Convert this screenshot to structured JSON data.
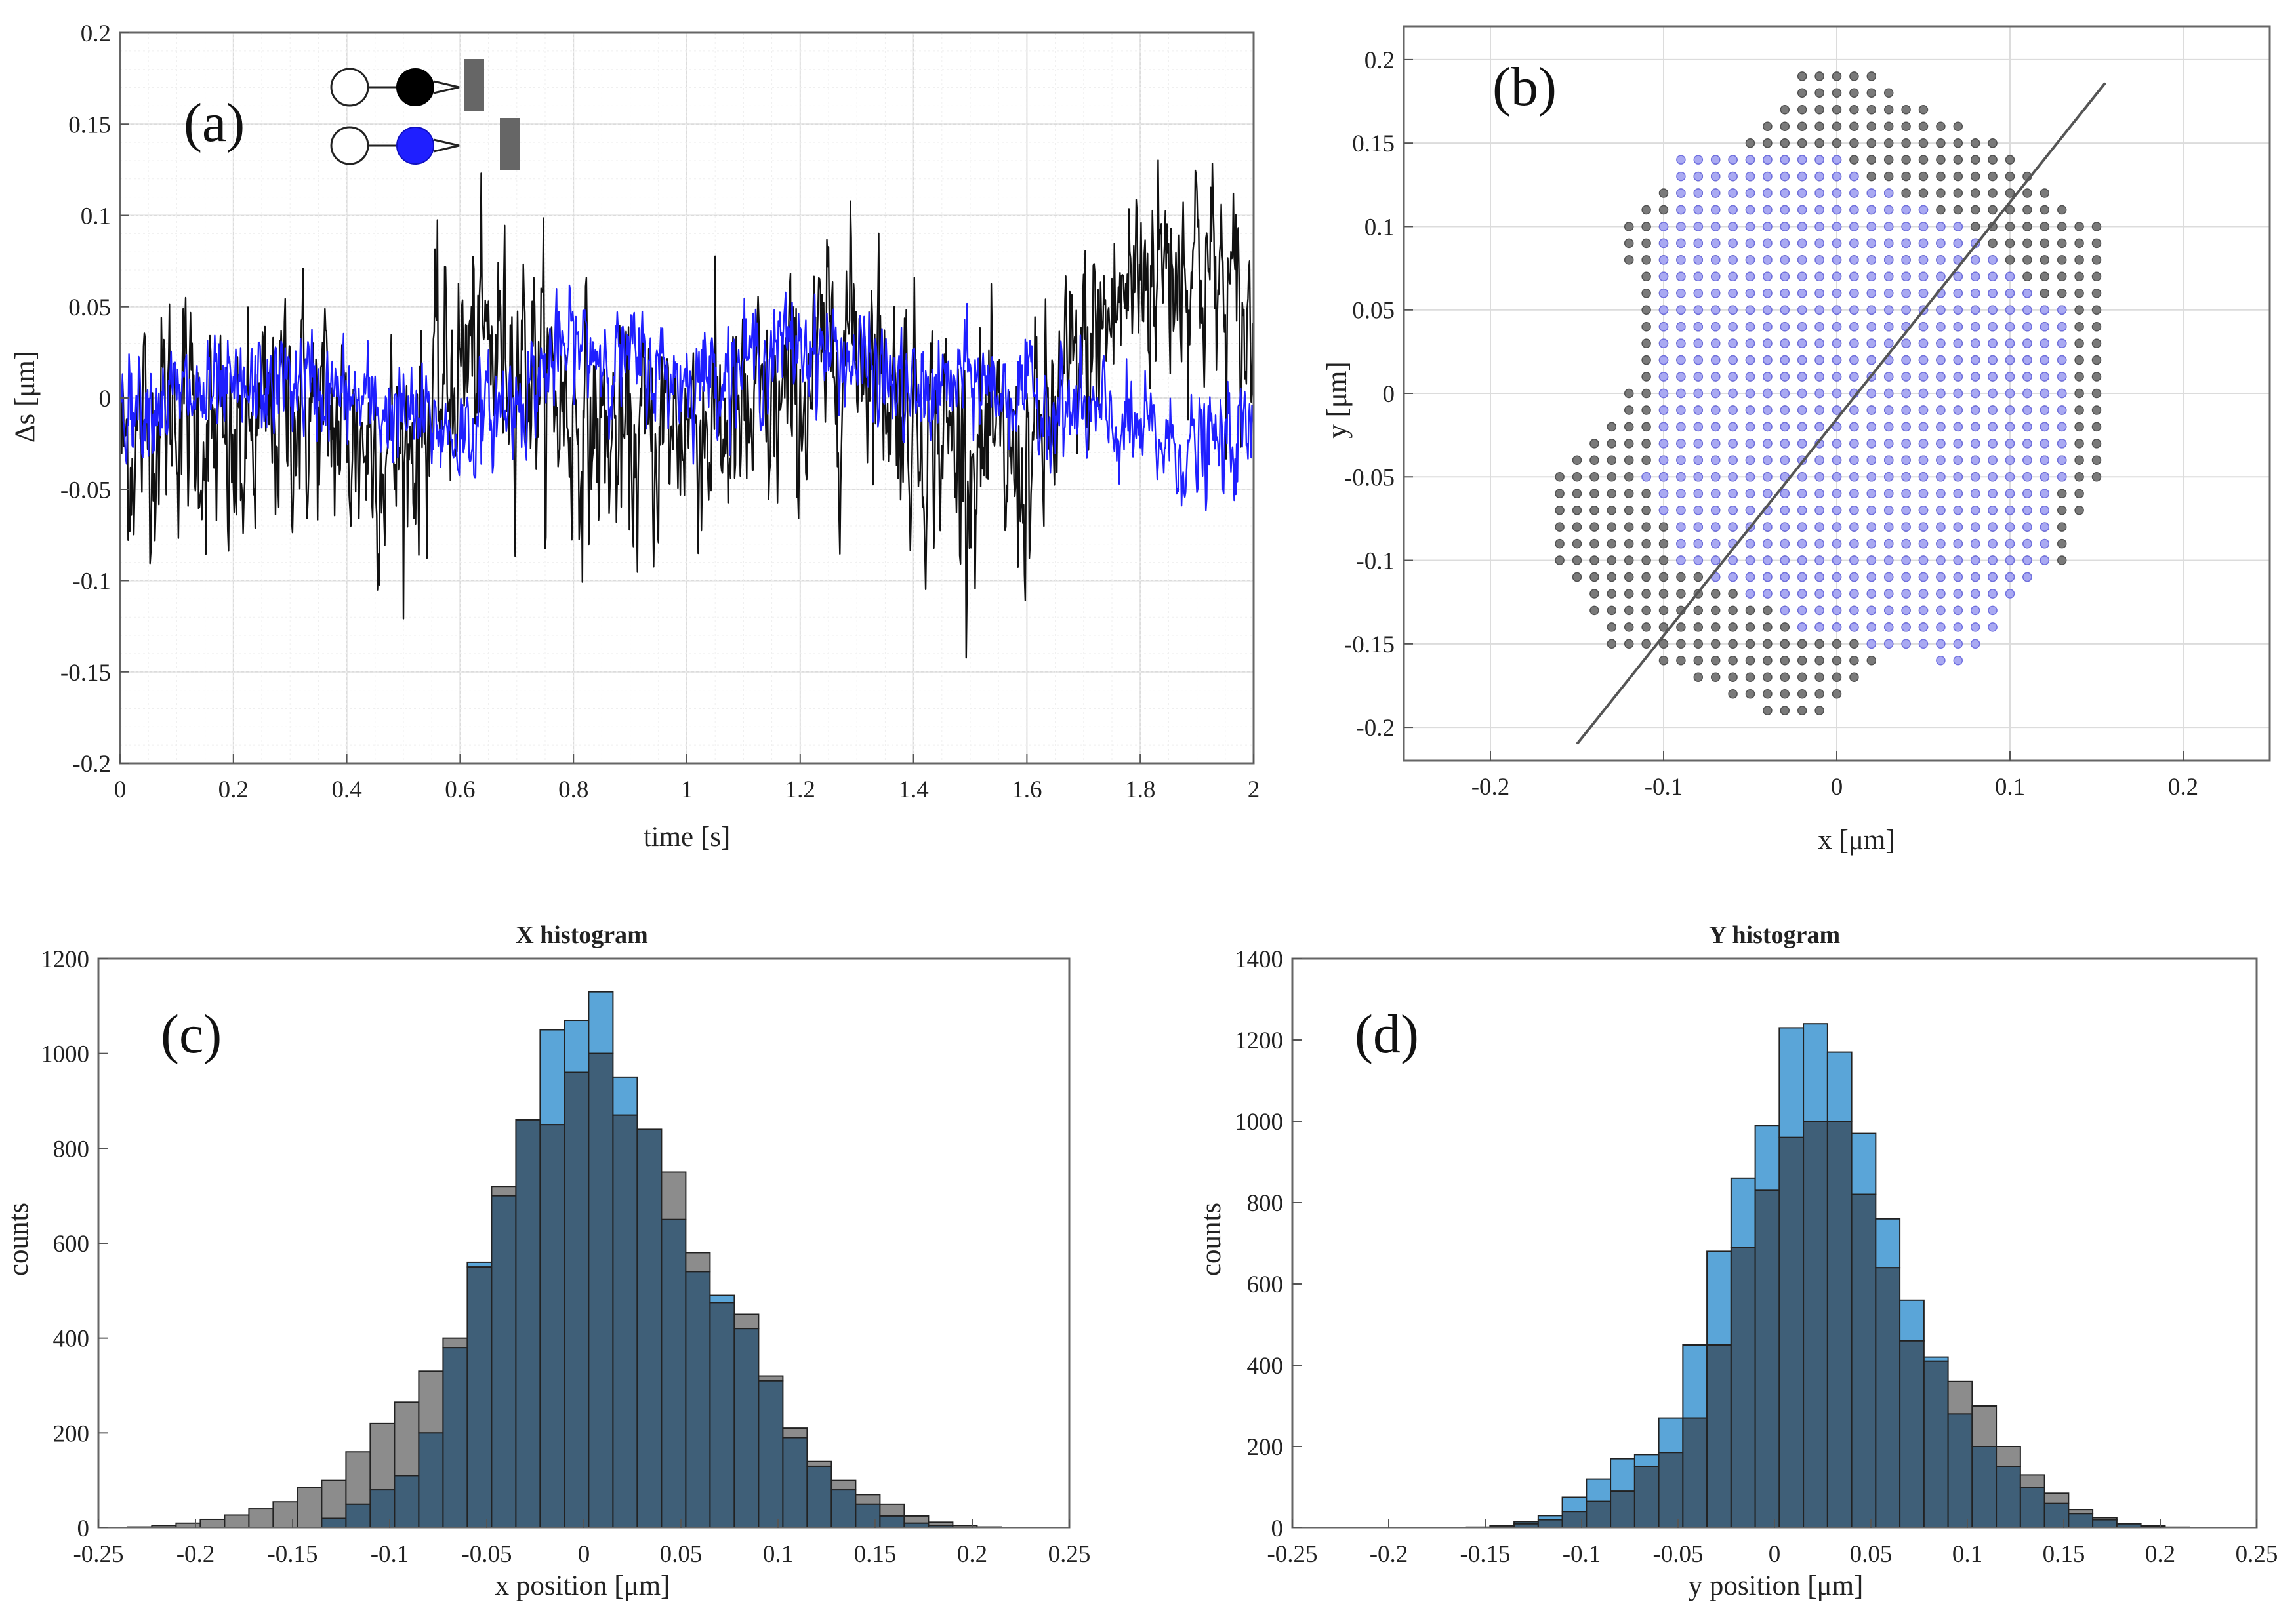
{
  "colors": {
    "black_trace": "#111111",
    "blue_trace": "#1f1fff",
    "gray_points": "#6e6e6e",
    "blue_points": "#7f7fe8",
    "hist_gray": "#8c8c8c",
    "hist_blue": "#5aa5d8",
    "hist_overlap": "#3f5f78",
    "fit_line": "#555555"
  },
  "chart_data": [
    {
      "id": "a",
      "type": "line",
      "panel_label": "(a)",
      "xlabel": "time [s]",
      "ylabel": "Δs [μm]",
      "xlim": [
        0,
        2
      ],
      "ylim": [
        -0.2,
        0.2
      ],
      "xticks": [
        0,
        0.2,
        0.4,
        0.6,
        0.8,
        1,
        1.2,
        1.4,
        1.6,
        1.8,
        2
      ],
      "xtick_labels": [
        "0",
        "0.2",
        "0.4",
        "0.6",
        "0.8",
        "1",
        "1.2",
        "1.4",
        "1.6",
        "1.8",
        "2"
      ],
      "yticks": [
        -0.2,
        -0.15,
        -0.1,
        -0.05,
        0,
        0.05,
        0.1,
        0.15,
        0.2
      ],
      "ytick_labels": [
        "-0.2",
        "-0.15",
        "-0.1",
        "-0.05",
        "0",
        "0.05",
        "0.1",
        "0.15",
        "0.2"
      ],
      "grid": true,
      "legend": "top-left icons",
      "series": [
        {
          "color": "black",
          "trend_x": [
            0,
            0.1,
            0.2,
            0.3,
            0.4,
            0.5,
            0.6,
            0.7,
            0.8,
            0.9,
            1.0,
            1.1,
            1.2,
            1.3,
            1.4,
            1.5,
            1.6,
            1.7,
            1.8,
            1.9,
            2.0
          ],
          "trend_y": [
            -0.03,
            0.0,
            -0.04,
            0.0,
            -0.02,
            -0.03,
            0.02,
            0.03,
            -0.01,
            -0.03,
            -0.01,
            -0.02,
            0.0,
            0.04,
            -0.01,
            -0.03,
            -0.04,
            0.02,
            0.07,
            0.08,
            0.03
          ],
          "noise_std": 0.04
        },
        {
          "color": "blue",
          "trend_x": [
            0,
            0.1,
            0.2,
            0.3,
            0.4,
            0.5,
            0.6,
            0.7,
            0.8,
            0.9,
            1.0,
            1.1,
            1.2,
            1.3,
            1.4,
            1.5,
            1.6,
            1.7,
            1.8,
            1.9,
            2.0
          ],
          "trend_y": [
            0.0,
            0.0,
            0.0,
            0.01,
            0.0,
            -0.01,
            -0.02,
            0.0,
            0.03,
            0.02,
            0.01,
            0.02,
            0.03,
            0.02,
            0.0,
            0.01,
            0.0,
            -0.01,
            -0.02,
            -0.03,
            -0.02
          ],
          "noise_std": 0.018
        }
      ]
    },
    {
      "id": "b",
      "type": "scatter",
      "panel_label": "(b)",
      "xlabel": "x [μm]",
      "ylabel": "y [μm]",
      "xlim": [
        -0.25,
        0.25
      ],
      "ylim": [
        -0.22,
        0.22
      ],
      "xticks": [
        -0.2,
        -0.1,
        0,
        0.1,
        0.2
      ],
      "xtick_labels": [
        "-0.2",
        "-0.1",
        "0",
        "0.1",
        "0.2"
      ],
      "yticks": [
        -0.2,
        -0.15,
        -0.1,
        -0.05,
        0,
        0.05,
        0.1,
        0.15,
        0.2
      ],
      "ytick_labels": [
        "-0.2",
        "-0.15",
        "-0.1",
        "-0.05",
        "0",
        "0.05",
        "0.1",
        "0.15",
        "0.2"
      ],
      "grid": true,
      "lattice_step": 0.01,
      "series": [
        {
          "color": "gray",
          "region_y": [
            -0.19,
            -0.15,
            -0.1,
            -0.05,
            0.0,
            0.05,
            0.1,
            0.15,
            0.19
          ],
          "x_min": [
            -0.04,
            -0.13,
            -0.16,
            -0.17,
            -0.12,
            -0.11,
            -0.13,
            -0.06,
            -0.02
          ],
          "x_max": [
            -0.01,
            0.04,
            0.13,
            0.15,
            0.15,
            0.15,
            0.15,
            0.09,
            0.02
          ]
        },
        {
          "color": "blue",
          "region_y": [
            -0.16,
            -0.14,
            -0.1,
            -0.05,
            0.0,
            0.05,
            0.1,
            0.14
          ],
          "x_min": [
            0.06,
            -0.02,
            -0.09,
            -0.11,
            -0.1,
            -0.1,
            -0.1,
            -0.09
          ],
          "x_max": [
            0.07,
            0.09,
            0.12,
            0.13,
            0.13,
            0.13,
            0.07,
            0.0
          ]
        }
      ],
      "fit_line": {
        "x": [
          -0.15,
          0.155
        ],
        "y": [
          -0.21,
          0.186
        ]
      }
    },
    {
      "id": "c",
      "type": "bar",
      "panel_label": "(c)",
      "title": "X histogram",
      "xlabel": "x position [μm]",
      "ylabel": "counts",
      "xlim": [
        -0.25,
        0.25
      ],
      "ylim": [
        0,
        1200
      ],
      "xticks": [
        -0.25,
        -0.2,
        -0.15,
        -0.1,
        -0.05,
        0,
        0.05,
        0.1,
        0.15,
        0.2,
        0.25
      ],
      "xtick_labels": [
        "-0.25",
        "-0.2",
        "-0.15",
        "-0.1",
        "-0.05",
        "0",
        "0.05",
        "0.1",
        "0.15",
        "0.2",
        "0.25"
      ],
      "yticks": [
        0,
        200,
        400,
        600,
        800,
        1000,
        1200
      ],
      "ytick_labels": [
        "0",
        "200",
        "400",
        "600",
        "800",
        "1000",
        "1200"
      ],
      "bin_start": -0.235,
      "bin_width": 0.0125,
      "series": [
        {
          "color": "gray",
          "values": [
            2,
            5,
            10,
            18,
            27,
            40,
            55,
            85,
            100,
            160,
            220,
            265,
            330,
            400,
            550,
            720,
            860,
            850,
            960,
            1000,
            870,
            840,
            750,
            580,
            475,
            450,
            320,
            210,
            140,
            100,
            70,
            50,
            25,
            12,
            5,
            2,
            0,
            0,
            0,
            0
          ]
        },
        {
          "color": "blue",
          "values": [
            0,
            0,
            0,
            0,
            0,
            0,
            0,
            0,
            20,
            50,
            80,
            110,
            200,
            380,
            560,
            700,
            860,
            1050,
            1070,
            1130,
            950,
            840,
            650,
            540,
            490,
            420,
            310,
            190,
            130,
            80,
            50,
            25,
            10,
            5,
            0,
            0,
            0,
            0,
            0,
            0
          ]
        }
      ]
    },
    {
      "id": "d",
      "type": "bar",
      "panel_label": "(d)",
      "title": "Y histogram",
      "xlabel": "y position [μm]",
      "ylabel": "counts",
      "xlim": [
        -0.25,
        0.25
      ],
      "ylim": [
        0,
        1400
      ],
      "xticks": [
        -0.25,
        -0.2,
        -0.15,
        -0.1,
        -0.05,
        0,
        0.05,
        0.1,
        0.15,
        0.2,
        0.25
      ],
      "xtick_labels": [
        "-0.25",
        "-0.2",
        "-0.15",
        "-0.1",
        "-0.05",
        "0",
        "0.05",
        "0.1",
        "0.15",
        "0.2",
        "0.25"
      ],
      "yticks": [
        0,
        200,
        400,
        600,
        800,
        1000,
        1200,
        1400
      ],
      "ytick_labels": [
        "0",
        "200",
        "400",
        "600",
        "800",
        "1000",
        "1200",
        "1400"
      ],
      "bin_start": -0.235,
      "bin_width": 0.0125,
      "series": [
        {
          "color": "gray",
          "values": [
            0,
            0,
            0,
            0,
            0,
            0,
            2,
            5,
            10,
            20,
            40,
            65,
            90,
            150,
            185,
            270,
            450,
            690,
            830,
            960,
            1000,
            1000,
            820,
            640,
            460,
            410,
            360,
            300,
            200,
            130,
            85,
            45,
            25,
            10,
            4,
            2,
            0,
            0,
            0,
            0
          ]
        },
        {
          "color": "blue",
          "values": [
            0,
            0,
            0,
            0,
            0,
            0,
            0,
            0,
            15,
            30,
            75,
            120,
            170,
            180,
            270,
            450,
            680,
            860,
            990,
            1230,
            1240,
            1170,
            970,
            760,
            560,
            420,
            280,
            200,
            150,
            100,
            60,
            35,
            20,
            10,
            5,
            0,
            0,
            0,
            0,
            0
          ]
        }
      ]
    }
  ]
}
